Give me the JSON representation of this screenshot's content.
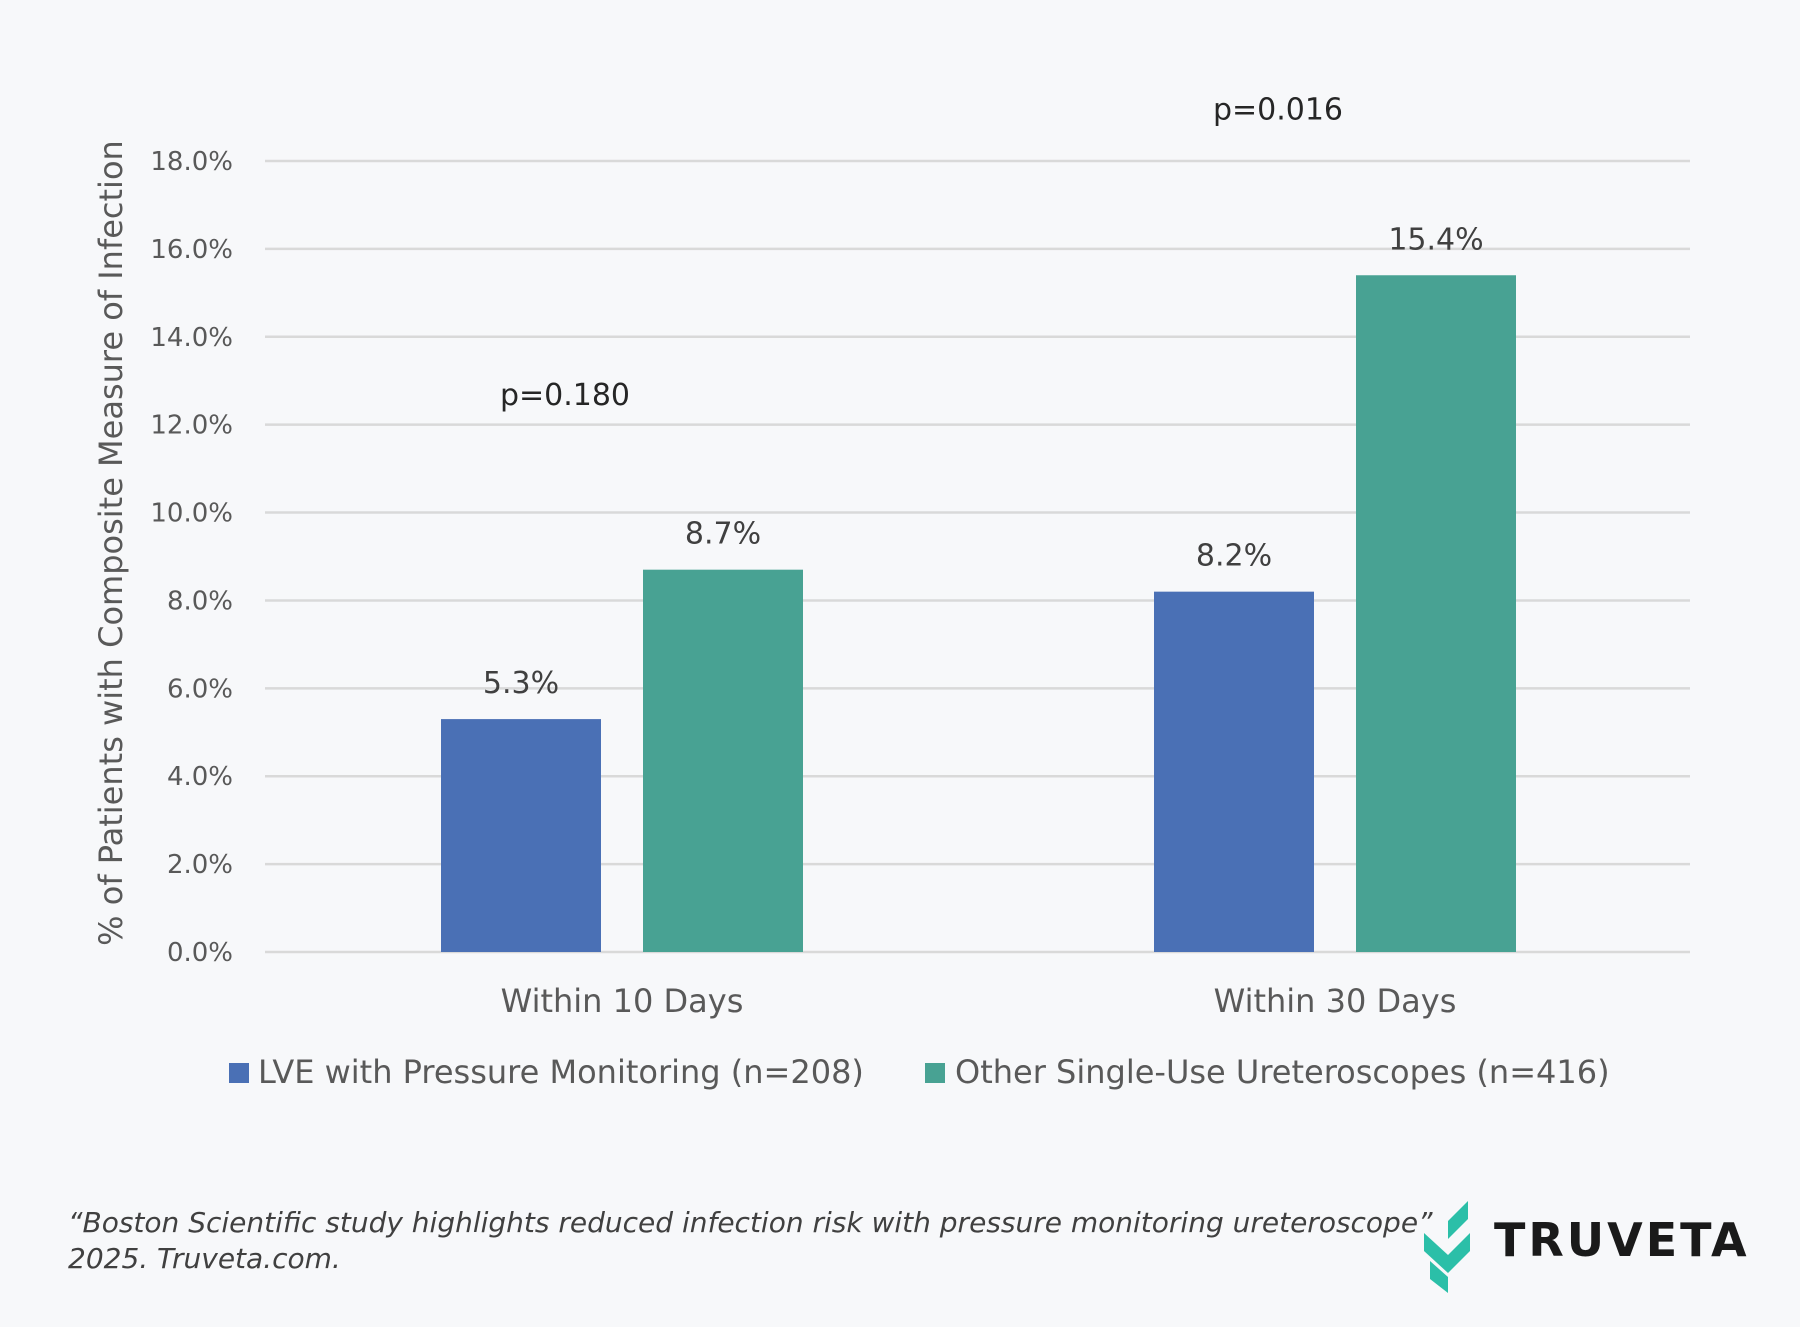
{
  "colors": {
    "series1": "#4a70b5",
    "series2": "#48a293",
    "grid": "#d9d9d9",
    "logo_accent": "#2bbfa8"
  },
  "chart_data": {
    "type": "bar",
    "title": "",
    "ylabel": "% of Patients with Composite Measure of Infection",
    "xlabel": "",
    "ylim": [
      0,
      18
    ],
    "yticks": [
      0,
      2,
      4,
      6,
      8,
      10,
      12,
      14,
      16,
      18
    ],
    "ytick_labels": [
      "0.0%",
      "2.0%",
      "4.0%",
      "6.0%",
      "8.0%",
      "10.0%",
      "12.0%",
      "14.0%",
      "16.0%",
      "18.0%"
    ],
    "categories": [
      "Within 10 Days",
      "Within 30 Days"
    ],
    "series": [
      {
        "name": "LVE with Pressure Monitoring (n=208)",
        "values": [
          5.3,
          8.2
        ],
        "labels": [
          "5.3%",
          "8.2%"
        ]
      },
      {
        "name": "Other Single-Use Ureteroscopes (n=416)",
        "values": [
          8.7,
          15.4
        ],
        "labels": [
          "8.7%",
          "15.4%"
        ]
      }
    ],
    "annotations": [
      {
        "text": "p=0.180",
        "category": 0,
        "y": 12.45
      },
      {
        "text": "p=0.016",
        "category": 1,
        "y": 18.95
      }
    ],
    "legend_position": "bottom",
    "grid": true
  },
  "citation": {
    "line1": "“Boston Scientific study highlights reduced infection risk with pressure monitoring ureteroscope”",
    "line2": "2025. Truveta.com."
  },
  "logo": {
    "text": "TRUVETA",
    "icon": "truveta-logo-icon"
  }
}
